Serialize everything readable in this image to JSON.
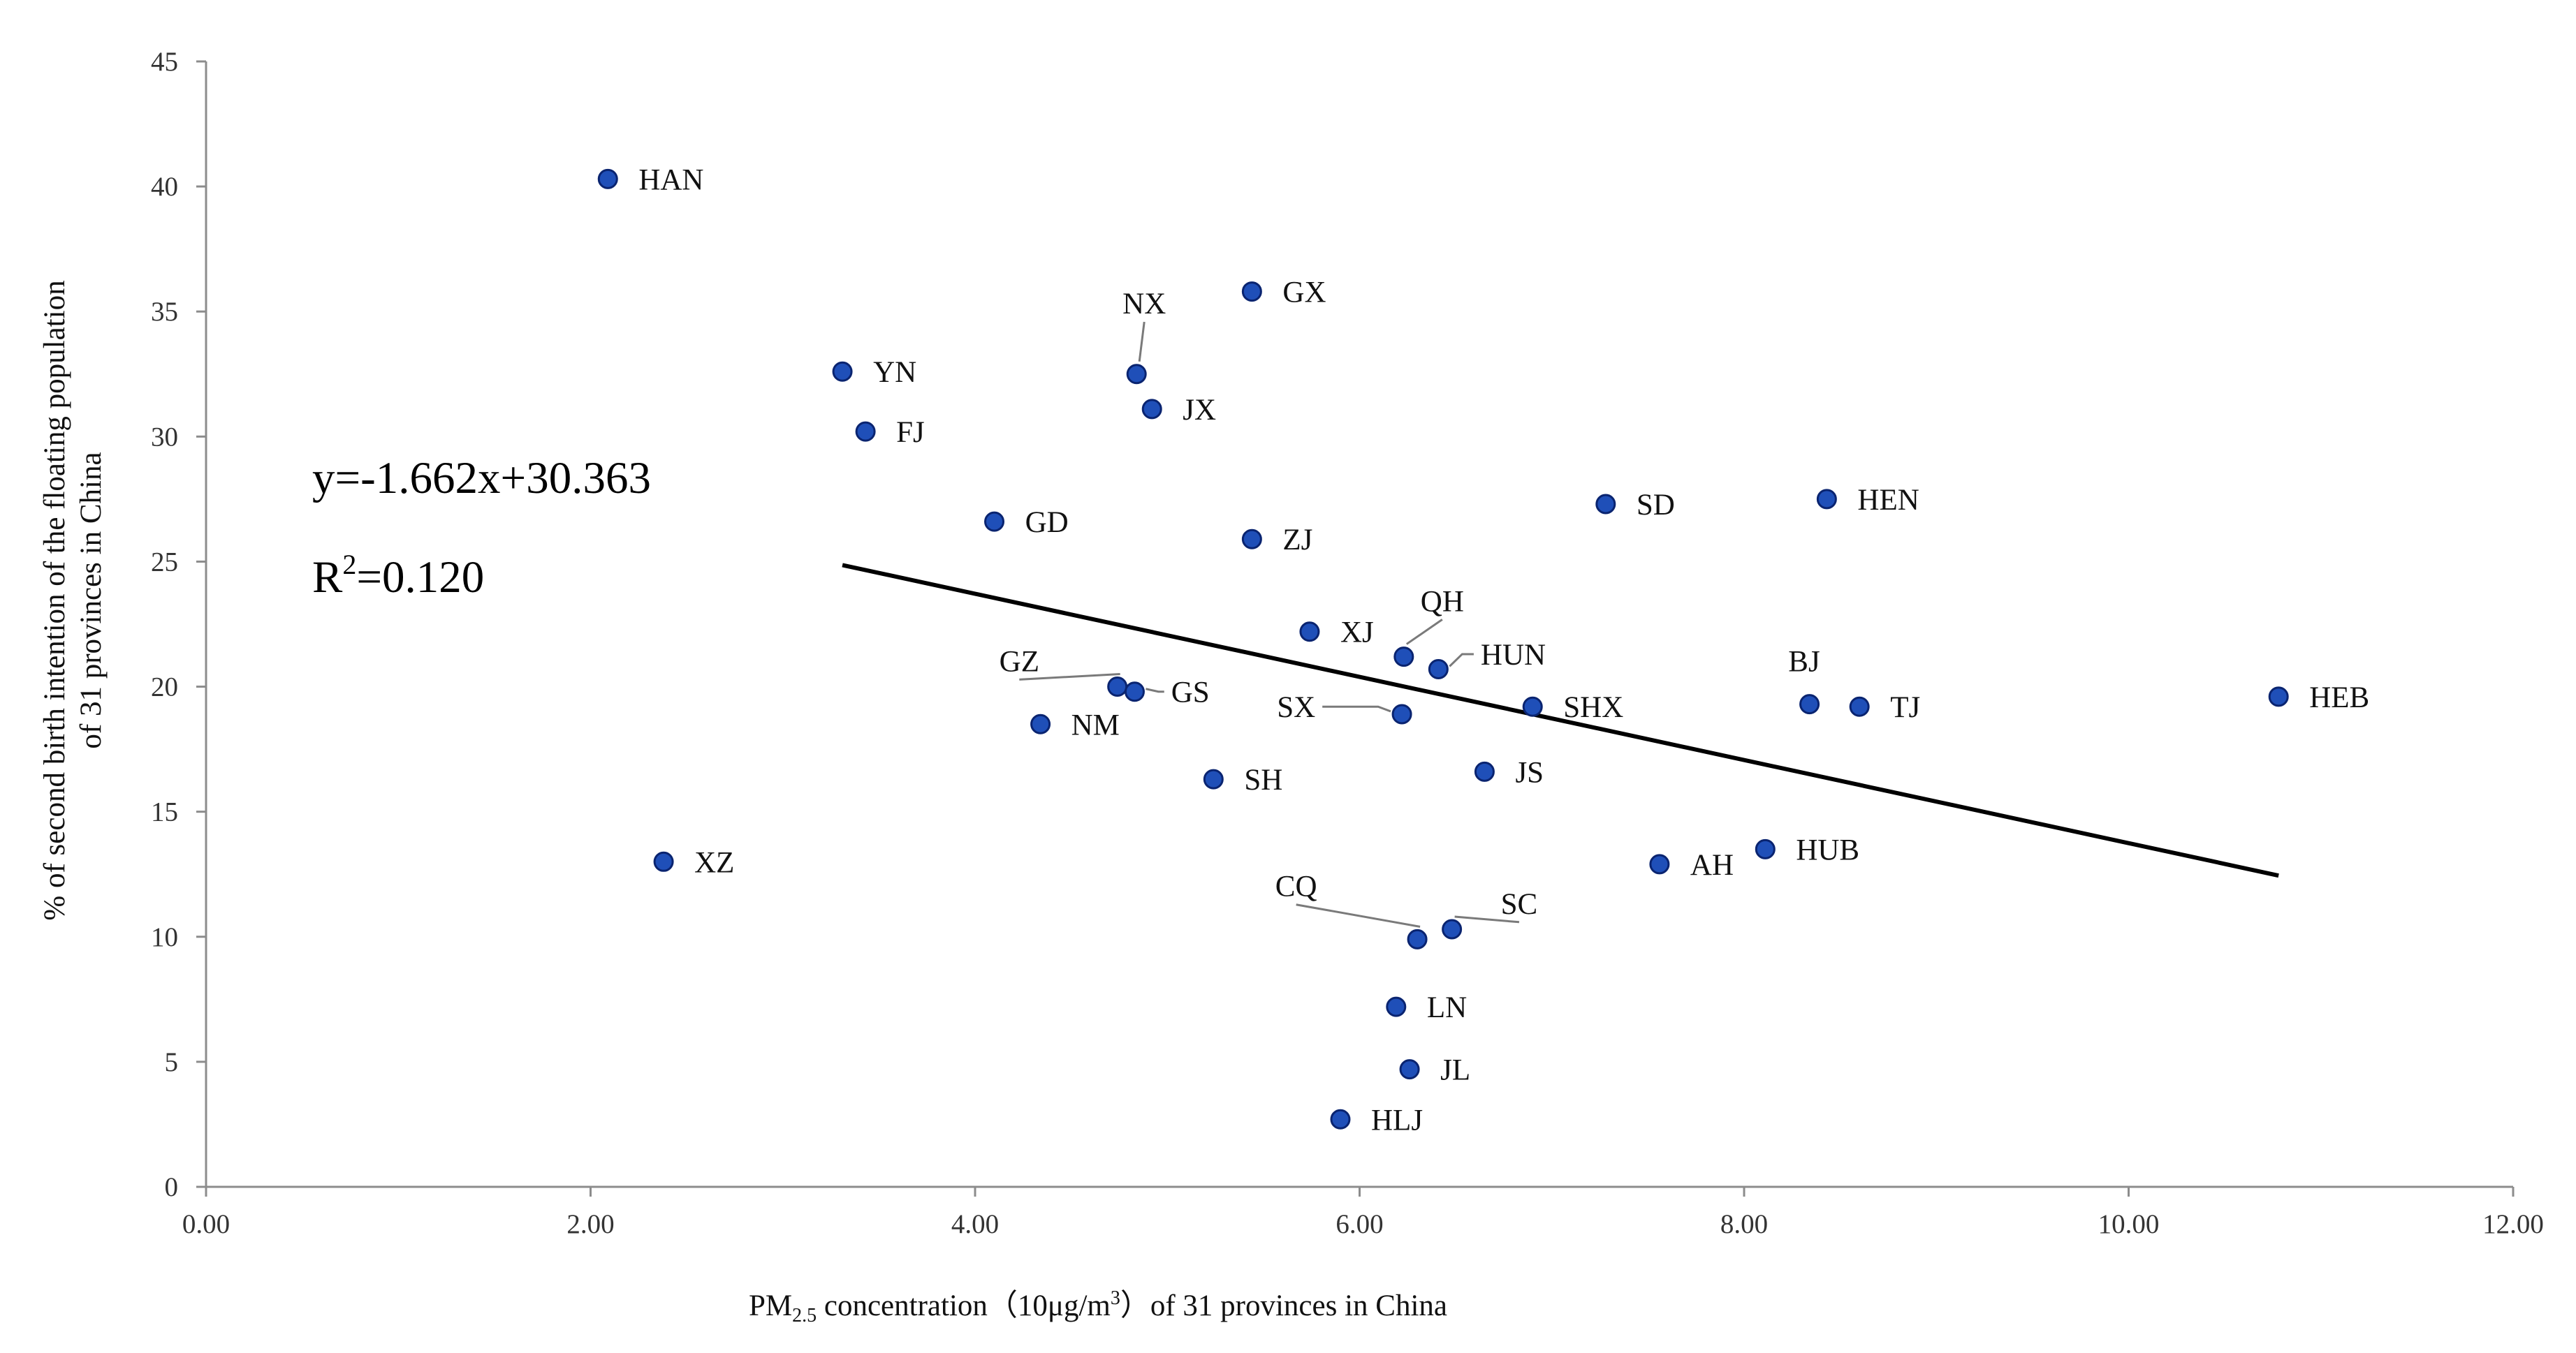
{
  "chart_data": {
    "type": "scatter",
    "title": "",
    "xlabel": {
      "prefix": "PM",
      "sub": "2.5",
      "middle": " concentration（10μg/m",
      "sup": "3",
      "suffix": "）of 31 provinces in China"
    },
    "ylabel": [
      "% of second birth intention of the floating population",
      "of 31 provinces in China"
    ],
    "xlim": [
      0,
      12
    ],
    "ylim": [
      0,
      45
    ],
    "x_ticks": [
      "0.00",
      "2.00",
      "4.00",
      "6.00",
      "8.00",
      "10.00",
      "12.00"
    ],
    "x_tick_values": [
      0,
      2,
      4,
      6,
      8,
      10,
      12
    ],
    "y_ticks": [
      "0",
      "5",
      "10",
      "15",
      "20",
      "25",
      "30",
      "35",
      "40",
      "45"
    ],
    "y_tick_values": [
      0,
      5,
      10,
      15,
      20,
      25,
      30,
      35,
      40,
      45
    ],
    "marker_color": "#1F4FB8",
    "marker_edge": "#0A2470",
    "points": [
      {
        "label": "HAN",
        "x": 2.09,
        "y": 40.3,
        "lx": 2.25,
        "ly": 40.3
      },
      {
        "label": "XZ",
        "x": 2.38,
        "y": 13.0,
        "lx": 2.54,
        "ly": 13.0
      },
      {
        "label": "YN",
        "x": 3.31,
        "y": 32.6,
        "lx": 3.47,
        "ly": 32.6
      },
      {
        "label": "FJ",
        "x": 3.43,
        "y": 30.2,
        "lx": 3.59,
        "ly": 30.2
      },
      {
        "label": "GD",
        "x": 4.1,
        "y": 26.6,
        "lx": 4.26,
        "ly": 26.6
      },
      {
        "label": "NM",
        "x": 4.34,
        "y": 18.5,
        "lx": 4.5,
        "ly": 18.5
      },
      {
        "label": "GZ",
        "x": 4.74,
        "y": 20.0,
        "lx": 4.23,
        "ly": 20.9,
        "leader": true
      },
      {
        "label": "GS",
        "x": 4.83,
        "y": 19.8,
        "lx": 5.02,
        "ly": 19.8,
        "leader": true
      },
      {
        "label": "NX",
        "x": 4.84,
        "y": 32.5,
        "lx": 4.88,
        "ly": 35.2,
        "leader": true
      },
      {
        "label": "JX",
        "x": 4.92,
        "y": 31.1,
        "lx": 5.08,
        "ly": 31.1
      },
      {
        "label": "SH",
        "x": 5.24,
        "y": 16.3,
        "lx": 5.4,
        "ly": 16.3
      },
      {
        "label": "GX",
        "x": 5.44,
        "y": 35.8,
        "lx": 5.6,
        "ly": 35.8
      },
      {
        "label": "ZJ",
        "x": 5.44,
        "y": 25.9,
        "lx": 5.6,
        "ly": 25.9
      },
      {
        "label": "XJ",
        "x": 5.74,
        "y": 22.2,
        "lx": 5.9,
        "ly": 22.2
      },
      {
        "label": "HLJ",
        "x": 5.9,
        "y": 2.7,
        "lx": 6.06,
        "ly": 2.7
      },
      {
        "label": "LN",
        "x": 6.19,
        "y": 7.2,
        "lx": 6.35,
        "ly": 7.2
      },
      {
        "label": "SX",
        "x": 6.22,
        "y": 18.9,
        "lx": 5.77,
        "ly": 19.2,
        "leader": true
      },
      {
        "label": "QH",
        "x": 6.23,
        "y": 21.2,
        "lx": 6.43,
        "ly": 23.3,
        "leader": true
      },
      {
        "label": "JL",
        "x": 6.26,
        "y": 4.7,
        "lx": 6.42,
        "ly": 4.7
      },
      {
        "label": "CQ",
        "x": 6.3,
        "y": 9.9,
        "lx": 5.67,
        "ly": 11.9,
        "leader": true
      },
      {
        "label": "HUN",
        "x": 6.41,
        "y": 20.7,
        "lx": 6.63,
        "ly": 21.3,
        "leader": true
      },
      {
        "label": "SC",
        "x": 6.48,
        "y": 10.3,
        "lx": 6.83,
        "ly": 11.2,
        "leader": true
      },
      {
        "label": "JS",
        "x": 6.65,
        "y": 16.6,
        "lx": 6.81,
        "ly": 16.6
      },
      {
        "label": "SHX",
        "x": 6.9,
        "y": 19.2,
        "lx": 7.06,
        "ly": 19.2
      },
      {
        "label": "SD",
        "x": 7.28,
        "y": 27.3,
        "lx": 7.44,
        "ly": 27.3
      },
      {
        "label": "AH",
        "x": 7.56,
        "y": 12.9,
        "lx": 7.72,
        "ly": 12.9
      },
      {
        "label": "HUB",
        "x": 8.11,
        "y": 13.5,
        "lx": 8.27,
        "ly": 13.5
      },
      {
        "label": "BJ",
        "x": 8.34,
        "y": 19.3,
        "lx": 8.23,
        "ly": 20.9
      },
      {
        "label": "HEN",
        "x": 8.43,
        "y": 27.5,
        "lx": 8.59,
        "ly": 27.5
      },
      {
        "label": "TJ",
        "x": 8.6,
        "y": 19.2,
        "lx": 8.76,
        "ly": 19.2
      },
      {
        "label": "HEB",
        "x": 10.78,
        "y": 19.6,
        "lx": 10.94,
        "ly": 19.6
      }
    ],
    "trendline": {
      "slope": -1.662,
      "intercept": 30.363,
      "x_start": 3.31,
      "x_end": 10.78
    },
    "equation": "y=-1.662x+30.363",
    "r_squared": {
      "prefix": "R",
      "sup": "2",
      "value": "=0.120"
    }
  }
}
